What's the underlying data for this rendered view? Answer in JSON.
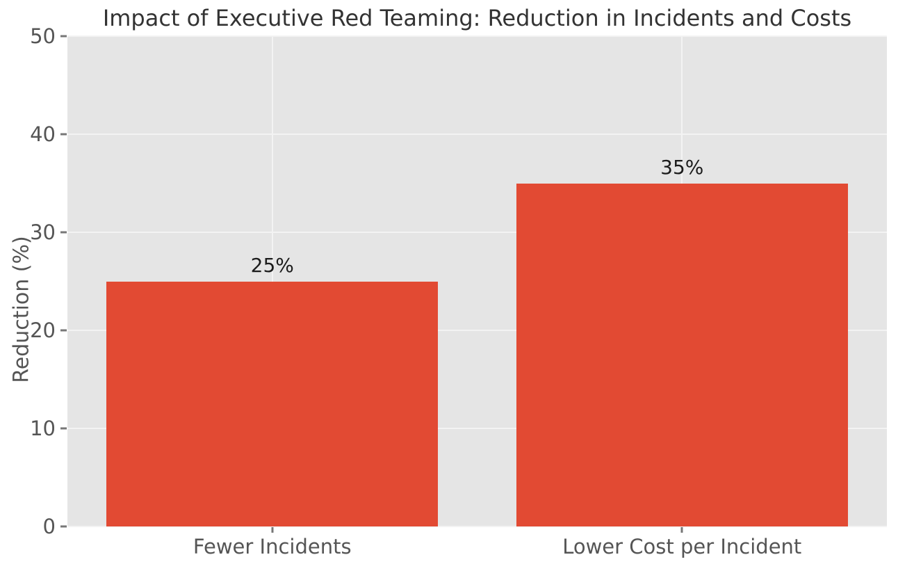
{
  "chart_data": {
    "type": "bar",
    "title": "Impact of Executive Red Teaming: Reduction in Incidents and Costs",
    "xlabel": "",
    "ylabel": "Reduction (%)",
    "categories": [
      "Fewer Incidents",
      "Lower Cost per Incident"
    ],
    "values": [
      25,
      35
    ],
    "value_labels": [
      "25%",
      "35%"
    ],
    "ylim": [
      0,
      50
    ],
    "yticks": [
      0,
      10,
      20,
      30,
      40,
      50
    ],
    "grid": true,
    "legend_position": "none",
    "style": "ggplot",
    "colors": {
      "bar": "#e24a33",
      "plot_background": "#e5e5e5",
      "figure_background": "#ffffff",
      "gridline": "#f3f3f3",
      "tick_label": "#555555",
      "axis_label": "#555555",
      "title": "#333333",
      "value_label": "#1c1c1c",
      "tick_mark": "#777777"
    }
  }
}
